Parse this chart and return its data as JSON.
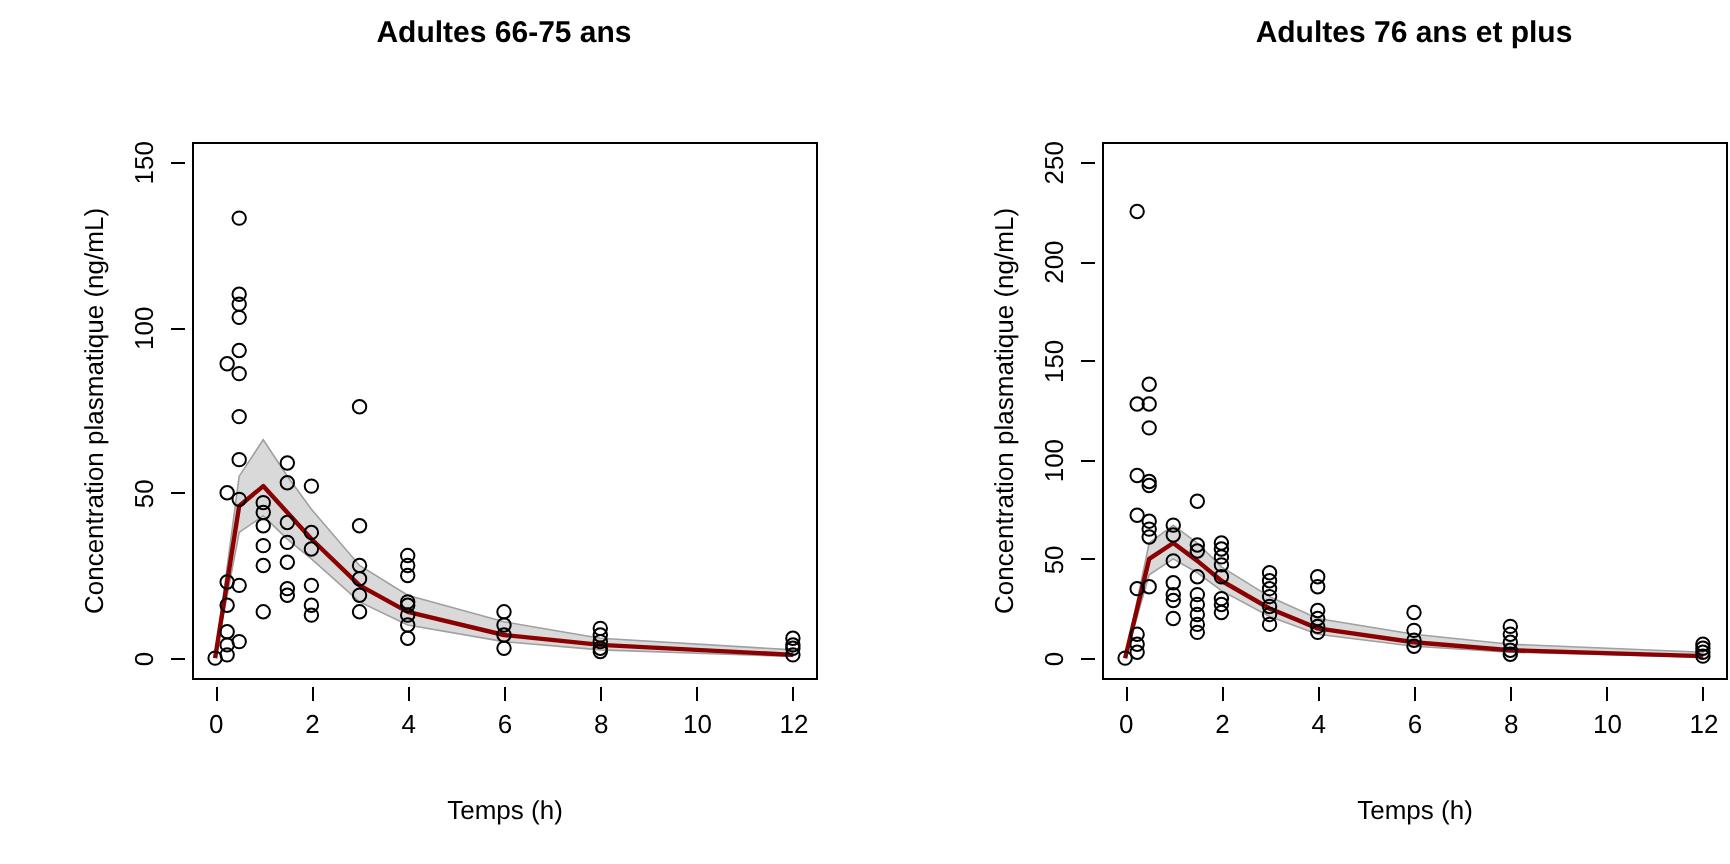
{
  "chart_data": [
    {
      "type": "scatter",
      "title": "Adultes 66-75 ans",
      "xlabel": "Temps (h)",
      "ylabel": "Concentration plasmatique (ng/mL)",
      "xlim": [
        -0.48,
        12.48
      ],
      "ylim": [
        -6,
        156
      ],
      "xticks": [
        0,
        2,
        4,
        6,
        8,
        10,
        12
      ],
      "yticks": [
        0,
        50,
        100,
        150
      ],
      "series": [
        {
          "marker": "circle",
          "color": "#000000",
          "x": [
            0,
            0.25,
            0.25,
            0.25,
            0.5,
            0.25,
            0.25,
            0.5,
            0.25,
            0.5,
            0.5,
            0.5,
            0.5,
            0.25,
            0.5,
            0.5,
            0.5,
            0.5,
            0.5,
            1,
            1,
            1,
            1,
            1,
            1,
            1.5,
            1.5,
            1.5,
            1.5,
            1.5,
            1.5,
            1.5,
            2,
            2,
            2,
            2,
            2,
            2,
            3,
            3,
            3,
            3,
            3,
            3,
            4,
            4,
            4,
            4,
            4,
            4,
            4,
            4,
            6,
            6,
            6,
            6,
            8,
            8,
            8,
            8,
            8,
            12,
            12,
            12,
            12
          ],
          "values": [
            0,
            1,
            4,
            8,
            5,
            16,
            23,
            22,
            50,
            48,
            60,
            73,
            86,
            89,
            93,
            103,
            107,
            110,
            133,
            47,
            40,
            34,
            28,
            14,
            44,
            59,
            53,
            41,
            35,
            29,
            21,
            19,
            52,
            38,
            33,
            22,
            16,
            13,
            76,
            40,
            28,
            24,
            19,
            14,
            31,
            28,
            25,
            17,
            16,
            13,
            10,
            6,
            14,
            10,
            7,
            3,
            9,
            7,
            5,
            3,
            2,
            6,
            4,
            3,
            1
          ]
        },
        {
          "type": "line",
          "color": "#8b0000",
          "x": [
            0,
            0.5,
            1,
            1.5,
            2,
            3,
            4,
            6,
            8,
            12
          ],
          "values": [
            0,
            46,
            52,
            44,
            36,
            22,
            14,
            7,
            4,
            1
          ],
          "lower": [
            0,
            38,
            43,
            36,
            30,
            17,
            10,
            5,
            2.5,
            0.5
          ],
          "upper": [
            0,
            55,
            66,
            55,
            45,
            28,
            19,
            11,
            6,
            2.5
          ]
        }
      ]
    },
    {
      "type": "scatter",
      "title": "Adultes 76 ans et plus",
      "xlabel": "Temps (h)",
      "ylabel": "Concentration plasmatique (ng/mL)",
      "xlim": [
        -0.48,
        12.48
      ],
      "ylim": [
        -10,
        260
      ],
      "xticks": [
        0,
        2,
        4,
        6,
        8,
        10,
        12
      ],
      "yticks": [
        0,
        50,
        100,
        150,
        200,
        250
      ],
      "series": [
        {
          "marker": "circle",
          "color": "#000000",
          "x": [
            0,
            0.25,
            0.25,
            0.25,
            0.25,
            0.25,
            0.25,
            0.25,
            0.25,
            0.5,
            0.5,
            0.5,
            0.5,
            0.5,
            0.5,
            0.5,
            0.5,
            0.5,
            1,
            1,
            1,
            1,
            1,
            1,
            1,
            1.5,
            1.5,
            1.5,
            1.5,
            1.5,
            1.5,
            1.5,
            1.5,
            1.5,
            2,
            2,
            2,
            2,
            2,
            2,
            2,
            2,
            3,
            3,
            3,
            3,
            3,
            3,
            3,
            4,
            4,
            4,
            4,
            4,
            4,
            6,
            6,
            6,
            6,
            8,
            8,
            8,
            8,
            8,
            12,
            12,
            12,
            12
          ],
          "values": [
            0,
            3,
            7,
            12,
            35,
            72,
            92,
            128,
            225,
            128,
            138,
            116,
            89,
            87,
            69,
            65,
            61,
            36,
            67,
            62,
            49,
            38,
            32,
            29,
            20,
            79,
            57,
            54,
            41,
            32,
            27,
            22,
            17,
            13,
            58,
            55,
            51,
            47,
            41,
            30,
            27,
            23,
            43,
            39,
            35,
            31,
            26,
            22,
            17,
            41,
            36,
            24,
            20,
            16,
            13,
            23,
            14,
            9,
            6,
            16,
            12,
            8,
            4,
            2,
            7,
            5,
            3,
            1
          ]
        },
        {
          "type": "line",
          "color": "#8b0000",
          "x": [
            0,
            0.5,
            1,
            1.5,
            2,
            3,
            4,
            6,
            8,
            12
          ],
          "values": [
            0,
            50,
            58,
            49,
            39,
            25,
            15,
            8,
            4,
            1
          ],
          "lower": [
            0,
            42,
            50,
            43,
            34,
            21,
            12,
            6,
            3,
            0.5
          ],
          "upper": [
            0,
            58,
            67,
            58,
            46,
            31,
            20,
            12,
            7,
            3
          ]
        }
      ]
    }
  ]
}
